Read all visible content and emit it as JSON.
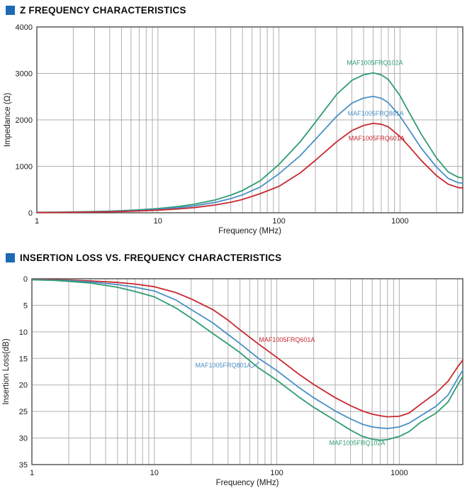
{
  "accent_color": "#1b6ab3",
  "chart_data": [
    {
      "type": "line",
      "title": "Z FREQUENCY CHARACTERISTICS",
      "xlabel": "Frequency (MHz)",
      "ylabel": "Impedance (Ω)",
      "x_scale": "log",
      "xlim": [
        1,
        3300
      ],
      "ylim": [
        0,
        4000
      ],
      "y_inverted": false,
      "x_ticks": [
        1,
        10,
        100,
        1000
      ],
      "y_ticks": [
        0,
        1000,
        2000,
        3000,
        4000
      ],
      "grid": true,
      "legend_position": "inline-labels",
      "series": [
        {
          "name": "MAF1005FRQ102A",
          "color": "#2f9c70",
          "label": [
            620,
            3180
          ],
          "points": [
            [
              1,
              10
            ],
            [
              1.5,
              14
            ],
            [
              2,
              18
            ],
            [
              3,
              28
            ],
            [
              4,
              37
            ],
            [
              5,
              46
            ],
            [
              7,
              64
            ],
            [
              10,
              92
            ],
            [
              15,
              137
            ],
            [
              20,
              185
            ],
            [
              30,
              280
            ],
            [
              40,
              380
            ],
            [
              50,
              480
            ],
            [
              70,
              690
            ],
            [
              100,
              1040
            ],
            [
              150,
              1530
            ],
            [
              200,
              1950
            ],
            [
              300,
              2550
            ],
            [
              400,
              2850
            ],
            [
              500,
              2970
            ],
            [
              600,
              3010
            ],
            [
              700,
              2970
            ],
            [
              800,
              2870
            ],
            [
              1000,
              2520
            ],
            [
              1200,
              2140
            ],
            [
              1500,
              1690
            ],
            [
              2000,
              1180
            ],
            [
              2500,
              880
            ],
            [
              3000,
              770
            ],
            [
              3300,
              750
            ]
          ]
        },
        {
          "name": "MAF1005FRQ801A",
          "color": "#4a90c6",
          "label": [
            630,
            2090
          ],
          "points": [
            [
              1,
              8
            ],
            [
              1.5,
              11
            ],
            [
              2,
              15
            ],
            [
              3,
              23
            ],
            [
              4,
              30
            ],
            [
              5,
              37
            ],
            [
              7,
              52
            ],
            [
              10,
              74
            ],
            [
              15,
              110
            ],
            [
              20,
              149
            ],
            [
              30,
              226
            ],
            [
              40,
              306
            ],
            [
              50,
              386
            ],
            [
              70,
              554
            ],
            [
              100,
              840
            ],
            [
              150,
              1230
            ],
            [
              200,
              1580
            ],
            [
              300,
              2080
            ],
            [
              400,
              2360
            ],
            [
              500,
              2470
            ],
            [
              600,
              2505
            ],
            [
              700,
              2465
            ],
            [
              800,
              2370
            ],
            [
              1000,
              2080
            ],
            [
              1200,
              1770
            ],
            [
              1500,
              1390
            ],
            [
              2000,
              985
            ],
            [
              2500,
              740
            ],
            [
              3000,
              650
            ],
            [
              3300,
              635
            ]
          ]
        },
        {
          "name": "MAF1005FRQ601A",
          "color": "#c8282e",
          "label": [
            640,
            1555
          ],
          "points": [
            [
              1,
              6
            ],
            [
              1.5,
              8
            ],
            [
              2,
              11
            ],
            [
              3,
              17
            ],
            [
              4,
              22
            ],
            [
              5,
              28
            ],
            [
              7,
              39
            ],
            [
              10,
              56
            ],
            [
              15,
              84
            ],
            [
              20,
              112
            ],
            [
              30,
              169
            ],
            [
              40,
              228
            ],
            [
              50,
              287
            ],
            [
              70,
              412
            ],
            [
              100,
              570
            ],
            [
              150,
              860
            ],
            [
              200,
              1130
            ],
            [
              300,
              1530
            ],
            [
              400,
              1770
            ],
            [
              500,
              1880
            ],
            [
              600,
              1925
            ],
            [
              700,
              1905
            ],
            [
              800,
              1850
            ],
            [
              1000,
              1640
            ],
            [
              1200,
              1415
            ],
            [
              1500,
              1125
            ],
            [
              2000,
              800
            ],
            [
              2500,
              615
            ],
            [
              3000,
              545
            ],
            [
              3300,
              535
            ]
          ]
        }
      ]
    },
    {
      "type": "line",
      "title": "INSERTION LOSS VS. FREQUENCY CHARACTERISTICS",
      "xlabel": "Frequency (MHz)",
      "ylabel": "Insertion Loss(dB)",
      "x_scale": "log",
      "xlim": [
        1,
        3300
      ],
      "ylim": [
        0,
        35
      ],
      "y_inverted": true,
      "x_ticks": [
        1,
        10,
        100,
        1000
      ],
      "y_ticks": [
        0,
        5,
        10,
        15,
        20,
        25,
        30,
        35
      ],
      "grid": true,
      "legend_position": "inline-labels",
      "series": [
        {
          "name": "MAF1005FRQ601A",
          "color": "#c8282e",
          "label": [
            121,
            11.9
          ],
          "points": [
            [
              1,
              0.1
            ],
            [
              1.5,
              0.15
            ],
            [
              2,
              0.25
            ],
            [
              3,
              0.4
            ],
            [
              5,
              0.7
            ],
            [
              7,
              1.0
            ],
            [
              10,
              1.5
            ],
            [
              15,
              2.6
            ],
            [
              20,
              3.8
            ],
            [
              30,
              5.8
            ],
            [
              40,
              7.8
            ],
            [
              50,
              9.6
            ],
            [
              70,
              12.2
            ],
            [
              100,
              14.8
            ],
            [
              150,
              17.9
            ],
            [
              200,
              19.9
            ],
            [
              300,
              22.4
            ],
            [
              400,
              23.9
            ],
            [
              500,
              24.9
            ],
            [
              600,
              25.5
            ],
            [
              700,
              25.8
            ],
            [
              800,
              26.0
            ],
            [
              1000,
              25.9
            ],
            [
              1200,
              25.3
            ],
            [
              1500,
              23.6
            ],
            [
              2000,
              21.5
            ],
            [
              2500,
              19.3
            ],
            [
              3000,
              16.6
            ],
            [
              3300,
              15.3
            ]
          ]
        },
        {
          "name": "MAF1005FRQ801A",
          "color": "#4a90c6",
          "label": [
            36.5,
            16.7
          ],
          "pointer": [
            [
              62,
              16.8
            ],
            [
              72,
              15.7
            ]
          ],
          "points": [
            [
              1,
              0.15
            ],
            [
              1.5,
              0.25
            ],
            [
              2,
              0.35
            ],
            [
              3,
              0.6
            ],
            [
              5,
              1.1
            ],
            [
              7,
              1.6
            ],
            [
              10,
              2.3
            ],
            [
              15,
              4.0
            ],
            [
              20,
              5.8
            ],
            [
              30,
              8.3
            ],
            [
              40,
              10.5
            ],
            [
              50,
              12.2
            ],
            [
              70,
              14.9
            ],
            [
              100,
              17.3
            ],
            [
              150,
              20.4
            ],
            [
              200,
              22.4
            ],
            [
              300,
              24.9
            ],
            [
              400,
              26.4
            ],
            [
              500,
              27.4
            ],
            [
              600,
              27.9
            ],
            [
              700,
              28.1
            ],
            [
              800,
              28.2
            ],
            [
              1000,
              27.9
            ],
            [
              1200,
              27.2
            ],
            [
              1500,
              25.8
            ],
            [
              2000,
              24.0
            ],
            [
              2500,
              21.9
            ],
            [
              3000,
              18.8
            ],
            [
              3300,
              17.2
            ]
          ]
        },
        {
          "name": "MAF1005FRQ102A",
          "color": "#2f9c70",
          "label": [
            453,
            31.3
          ],
          "points": [
            [
              1,
              0.2
            ],
            [
              1.5,
              0.3
            ],
            [
              2,
              0.5
            ],
            [
              3,
              0.8
            ],
            [
              5,
              1.6
            ],
            [
              7,
              2.4
            ],
            [
              10,
              3.4
            ],
            [
              15,
              5.5
            ],
            [
              20,
              7.4
            ],
            [
              30,
              10.3
            ],
            [
              40,
              12.3
            ],
            [
              50,
              13.9
            ],
            [
              70,
              16.7
            ],
            [
              100,
              19.1
            ],
            [
              150,
              22.2
            ],
            [
              200,
              24.2
            ],
            [
              300,
              26.7
            ],
            [
              400,
              28.5
            ],
            [
              500,
              29.7
            ],
            [
              600,
              30.2
            ],
            [
              700,
              30.4
            ],
            [
              800,
              30.3
            ],
            [
              1000,
              29.7
            ],
            [
              1200,
              28.8
            ],
            [
              1500,
              27.0
            ],
            [
              2000,
              25.3
            ],
            [
              2500,
              23.2
            ],
            [
              3000,
              20.0
            ],
            [
              3300,
              18.4
            ]
          ]
        }
      ]
    }
  ]
}
